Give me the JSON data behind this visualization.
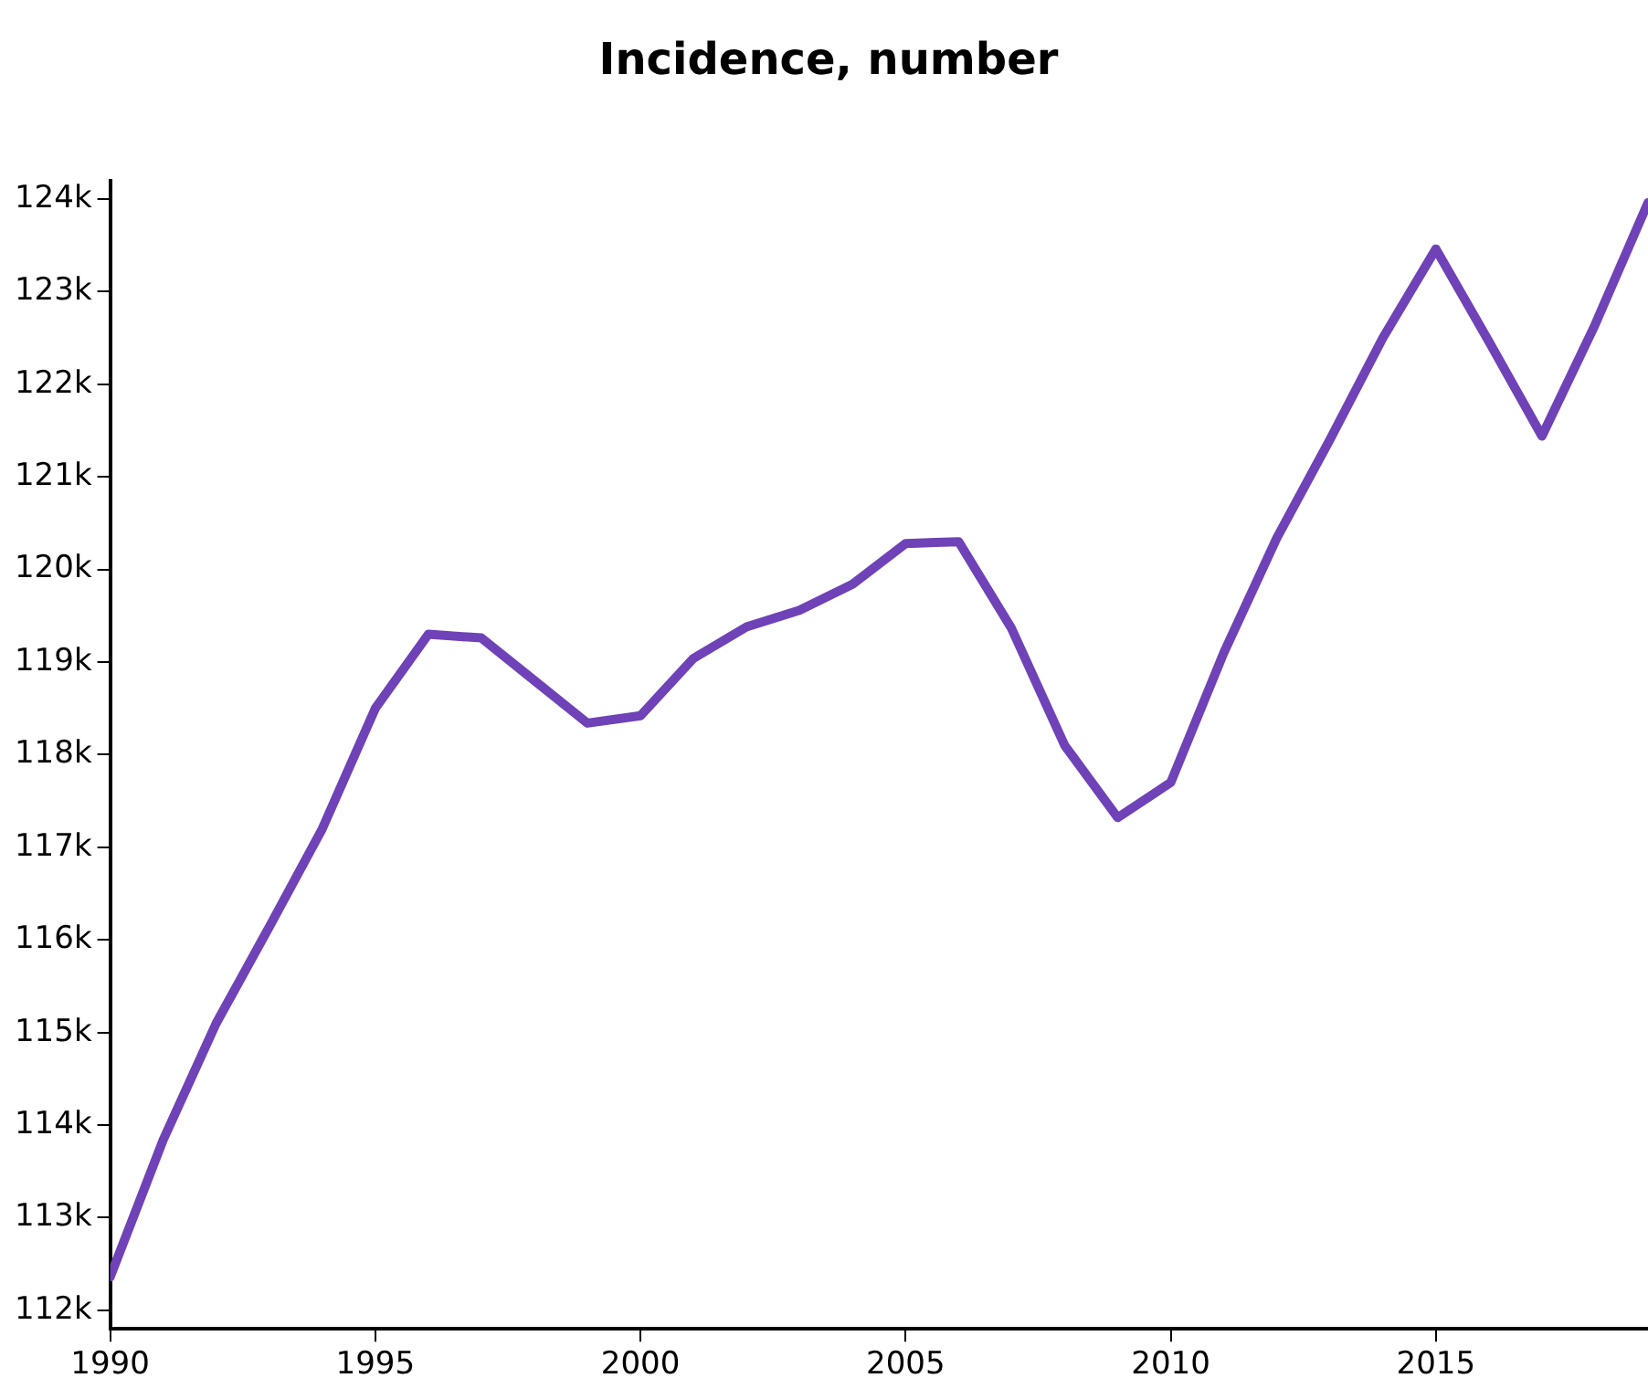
{
  "chart_data": {
    "type": "line",
    "title": "Incidence, number",
    "x": [
      1990,
      1991,
      1992,
      1993,
      1994,
      1995,
      1996,
      1997,
      1998,
      1999,
      2000,
      2001,
      2002,
      2003,
      2004,
      2005,
      2006,
      2007,
      2008,
      2009,
      2010,
      2011,
      2012,
      2013,
      2014,
      2015,
      2016,
      2017,
      2018,
      2019
    ],
    "series": [
      {
        "color": "#6f42b8",
        "values": [
          112360,
          113840,
          115100,
          116140,
          117200,
          118500,
          119300,
          119260,
          118800,
          118340,
          118420,
          119040,
          119380,
          119560,
          119840,
          120280,
          120300,
          119360,
          118100,
          117320,
          117700,
          119100,
          120340,
          121400,
          122500,
          123460,
          122460,
          121440,
          122640,
          123960
        ]
      }
    ],
    "xlim": [
      1990,
      2019
    ],
    "xticks": [
      1990,
      1995,
      2000,
      2005,
      2010,
      2015
    ],
    "ylim": [
      111800,
      124200
    ],
    "yticks": [
      {
        "value": 112000,
        "label": "112k"
      },
      {
        "value": 113000,
        "label": "113k"
      },
      {
        "value": 114000,
        "label": "114k"
      },
      {
        "value": 115000,
        "label": "115k"
      },
      {
        "value": 116000,
        "label": "116k"
      },
      {
        "value": 117000,
        "label": "117k"
      },
      {
        "value": 118000,
        "label": "118k"
      },
      {
        "value": 119000,
        "label": "119k"
      },
      {
        "value": 120000,
        "label": "120k"
      },
      {
        "value": 121000,
        "label": "121k"
      },
      {
        "value": 122000,
        "label": "122k"
      },
      {
        "value": 123000,
        "label": "123k"
      },
      {
        "value": 124000,
        "label": "124k"
      }
    ],
    "grid": false,
    "legend": false,
    "marker": "none",
    "line_style": "solid"
  }
}
